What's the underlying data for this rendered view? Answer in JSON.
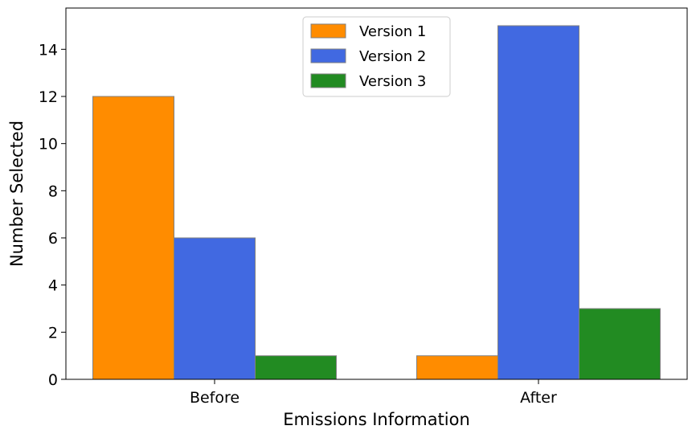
{
  "chart_data": {
    "type": "bar",
    "categories": [
      "Before",
      "After"
    ],
    "series": [
      {
        "name": "Version 1",
        "values": [
          12,
          1
        ],
        "color": "#ff8c00"
      },
      {
        "name": "Version 2",
        "values": [
          6,
          15
        ],
        "color": "#4169e1"
      },
      {
        "name": "Version 3",
        "values": [
          1,
          3
        ],
        "color": "#228b22"
      }
    ],
    "xlabel": "Emissions Information",
    "ylabel": "Number Selected",
    "ylim": [
      0,
      15.75
    ],
    "yticks": [
      0,
      2,
      4,
      6,
      8,
      10,
      12,
      14
    ],
    "grid": false,
    "legend": "top-center",
    "bar_edge_color": "#808080"
  }
}
